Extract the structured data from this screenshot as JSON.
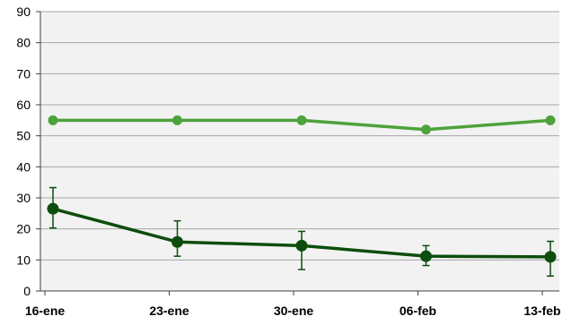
{
  "chart_data": {
    "type": "line",
    "title": "",
    "xlabel": "",
    "ylabel": "",
    "ylim": [
      0,
      90
    ],
    "y_ticks": [
      "0",
      "10",
      "20",
      "30",
      "40",
      "50",
      "60",
      "70",
      "80",
      "90"
    ],
    "categories": [
      "16-ene",
      "23-ene",
      "30-ene",
      "06-feb",
      "13-feb"
    ],
    "grid": "horizontal",
    "plot_background": "#f2f2f2",
    "series": [
      {
        "values": [
          55,
          55,
          55,
          52,
          55
        ],
        "color": "#4ea23c",
        "error_bars": false
      },
      {
        "values": [
          26.5,
          15.8,
          14.6,
          11.2,
          11.0
        ],
        "color": "#0d4d0d",
        "error_low": [
          20.3,
          11.2,
          6.9,
          8.2,
          4.8
        ],
        "error_high": [
          33.3,
          22.6,
          19.2,
          14.6,
          16.0
        ],
        "error_bars": true
      }
    ]
  }
}
